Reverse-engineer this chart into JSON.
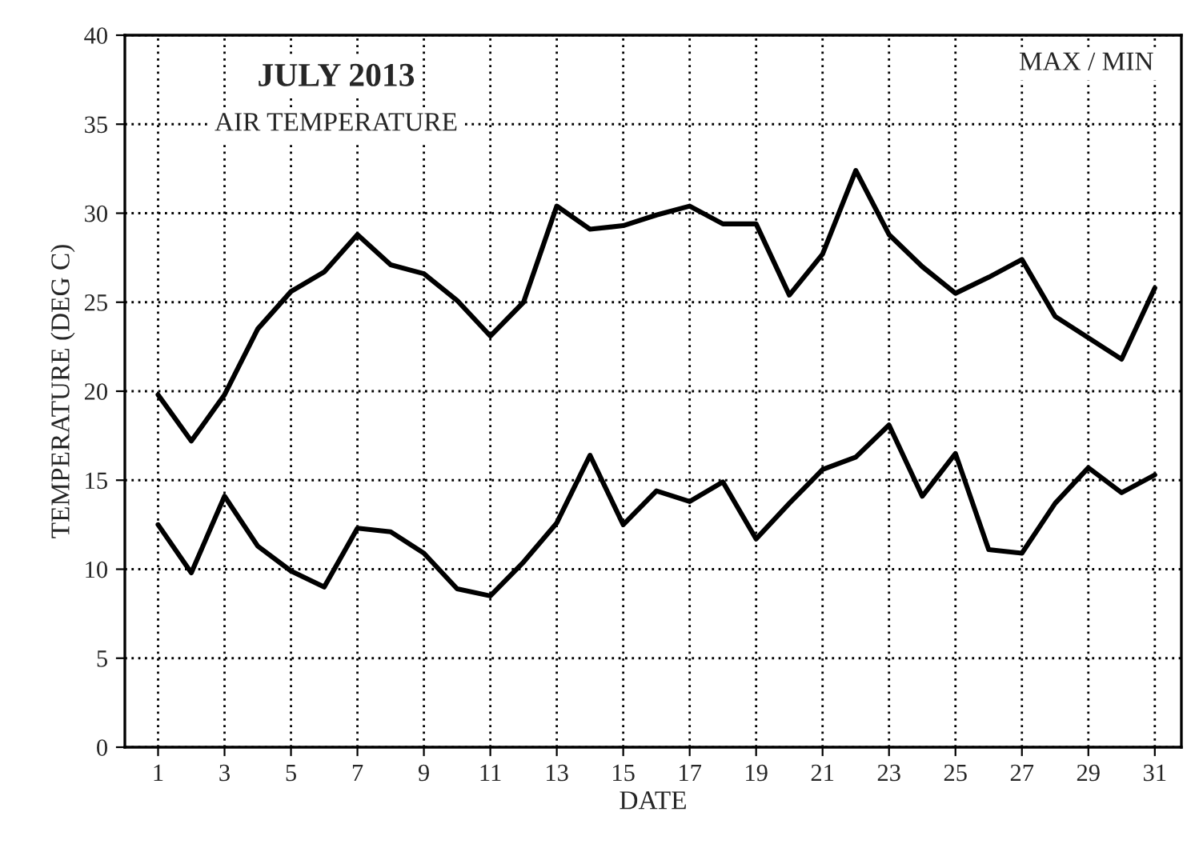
{
  "chart_data": {
    "type": "line",
    "title": "JULY 2013",
    "subtitle": "AIR TEMPERATURE",
    "xlabel": "DATE",
    "ylabel": "TEMPERATURE (DEG C)",
    "annotations": [
      "MAX / MIN"
    ],
    "x": [
      1,
      2,
      3,
      4,
      5,
      6,
      7,
      8,
      9,
      10,
      11,
      12,
      13,
      14,
      15,
      16,
      17,
      18,
      19,
      20,
      21,
      22,
      23,
      24,
      25,
      26,
      27,
      28,
      29,
      30,
      31
    ],
    "series": [
      {
        "color": "#000000",
        "values": [
          19.8,
          17.2,
          19.8,
          23.5,
          25.6,
          26.7,
          28.8,
          27.1,
          26.6,
          25.1,
          23.1,
          25.0,
          30.4,
          29.1,
          29.3,
          29.9,
          30.4,
          29.4,
          29.4,
          25.4,
          27.7,
          32.4,
          28.8,
          27.0,
          25.5,
          26.4,
          27.4,
          24.2,
          23.0,
          21.8,
          25.8
        ]
      },
      {
        "color": "#000000",
        "values": [
          12.5,
          9.8,
          14.1,
          11.3,
          9.9,
          9.0,
          12.3,
          12.1,
          10.9,
          8.9,
          8.5,
          10.4,
          12.6,
          16.4,
          12.5,
          14.4,
          13.8,
          14.9,
          11.7,
          13.7,
          15.6,
          16.3,
          18.1,
          14.1,
          16.5,
          11.1,
          10.9,
          13.7,
          15.7,
          14.3,
          15.3
        ]
      }
    ],
    "xlim": [
      0,
      31.8
    ],
    "xticks": [
      1,
      3,
      5,
      7,
      9,
      11,
      13,
      15,
      17,
      19,
      21,
      23,
      25,
      27,
      29,
      31
    ],
    "ylim": [
      0,
      40
    ],
    "yticks": [
      0,
      5,
      10,
      15,
      20,
      25,
      30,
      35,
      40
    ],
    "grid": true,
    "line_style": "solid",
    "marker": "none"
  }
}
